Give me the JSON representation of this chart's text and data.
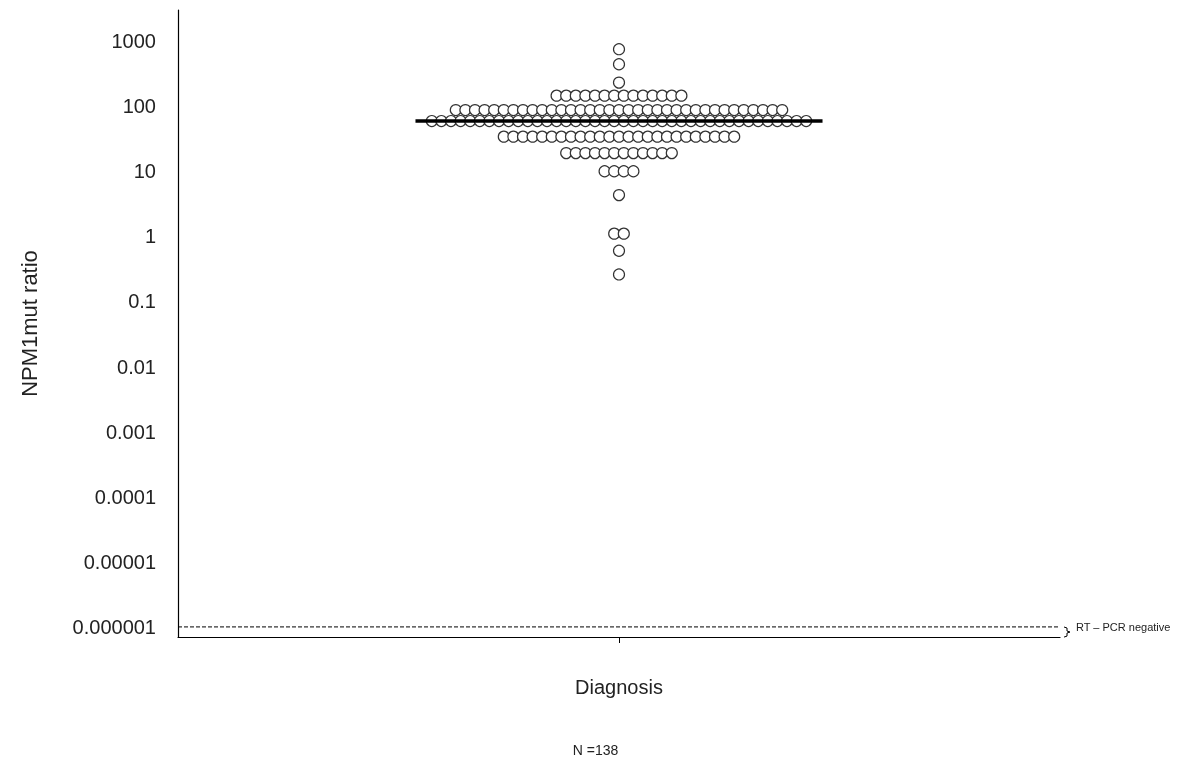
{
  "chart_data": {
    "type": "scatter",
    "ylabel": "NPM1mut ratio",
    "categories": [
      "Diagnosis"
    ],
    "series": [
      {
        "color": "#ffffff",
        "x": [
          "Diagnosis",
          "Diagnosis",
          "Diagnosis",
          "Diagnosis",
          "Diagnosis",
          "Diagnosis",
          "Diagnosis",
          "Diagnosis",
          "Diagnosis",
          "Diagnosis",
          "Diagnosis",
          "Diagnosis",
          "Diagnosis",
          "Diagnosis",
          "Diagnosis",
          "Diagnosis",
          "Diagnosis",
          "Diagnosis",
          "Diagnosis",
          "Diagnosis",
          "Diagnosis",
          "Diagnosis",
          "Diagnosis",
          "Diagnosis",
          "Diagnosis",
          "Diagnosis",
          "Diagnosis",
          "Diagnosis",
          "Diagnosis",
          "Diagnosis",
          "Diagnosis",
          "Diagnosis",
          "Diagnosis",
          "Diagnosis",
          "Diagnosis",
          "Diagnosis",
          "Diagnosis",
          "Diagnosis",
          "Diagnosis",
          "Diagnosis",
          "Diagnosis",
          "Diagnosis",
          "Diagnosis",
          "Diagnosis",
          "Diagnosis",
          "Diagnosis",
          "Diagnosis",
          "Diagnosis",
          "Diagnosis",
          "Diagnosis",
          "Diagnosis",
          "Diagnosis",
          "Diagnosis",
          "Diagnosis",
          "Diagnosis",
          "Diagnosis",
          "Diagnosis",
          "Diagnosis",
          "Diagnosis",
          "Diagnosis",
          "Diagnosis",
          "Diagnosis",
          "Diagnosis",
          "Diagnosis",
          "Diagnosis",
          "Diagnosis",
          "Diagnosis",
          "Diagnosis",
          "Diagnosis",
          "Diagnosis",
          "Diagnosis",
          "Diagnosis",
          "Diagnosis",
          "Diagnosis",
          "Diagnosis",
          "Diagnosis",
          "Diagnosis",
          "Diagnosis",
          "Diagnosis",
          "Diagnosis",
          "Diagnosis",
          "Diagnosis",
          "Diagnosis",
          "Diagnosis",
          "Diagnosis",
          "Diagnosis",
          "Diagnosis",
          "Diagnosis",
          "Diagnosis",
          "Diagnosis",
          "Diagnosis",
          "Diagnosis",
          "Diagnosis",
          "Diagnosis",
          "Diagnosis",
          "Diagnosis",
          "Diagnosis",
          "Diagnosis",
          "Diagnosis",
          "Diagnosis",
          "Diagnosis",
          "Diagnosis",
          "Diagnosis",
          "Diagnosis",
          "Diagnosis",
          "Diagnosis",
          "Diagnosis",
          "Diagnosis",
          "Diagnosis",
          "Diagnosis",
          "Diagnosis",
          "Diagnosis",
          "Diagnosis",
          "Diagnosis",
          "Diagnosis",
          "Diagnosis",
          "Diagnosis",
          "Diagnosis",
          "Diagnosis",
          "Diagnosis",
          "Diagnosis",
          "Diagnosis",
          "Diagnosis",
          "Diagnosis",
          "Diagnosis",
          "Diagnosis",
          "Diagnosis",
          "Diagnosis",
          "Diagnosis",
          "Diagnosis",
          "Diagnosis",
          "Diagnosis",
          "Diagnosis",
          "Diagnosis",
          "Diagnosis",
          "Diagnosis",
          "Diagnosis",
          "Diagnosis"
        ],
        "values": [
          750,
          440,
          230,
          145,
          145,
          145,
          145,
          145,
          145,
          145,
          145,
          145,
          145,
          145,
          145,
          145,
          145,
          87,
          87,
          87,
          87,
          87,
          87,
          87,
          87,
          87,
          87,
          87,
          87,
          87,
          87,
          87,
          87,
          87,
          87,
          87,
          87,
          87,
          87,
          87,
          87,
          87,
          87,
          87,
          87,
          87,
          87,
          87,
          87,
          87,
          87,
          87,
          59,
          59,
          59,
          59,
          59,
          59,
          59,
          59,
          59,
          59,
          59,
          59,
          59,
          59,
          59,
          59,
          59,
          59,
          59,
          59,
          59,
          59,
          59,
          59,
          59,
          59,
          59,
          59,
          59,
          59,
          59,
          59,
          59,
          59,
          59,
          59,
          59,
          59,
          59,
          59,
          34,
          34,
          34,
          34,
          34,
          34,
          34,
          34,
          34,
          34,
          34,
          34,
          34,
          34,
          34,
          34,
          34,
          34,
          34,
          34,
          34,
          34,
          34,
          34,
          34,
          19,
          19,
          19,
          19,
          19,
          19,
          19,
          19,
          19,
          19,
          19,
          19,
          10,
          10,
          10,
          10,
          4.3,
          1.1,
          1.1,
          0.6,
          0.26
        ]
      }
    ],
    "ylim": [
      7e-07,
      3000
    ],
    "yticks": [
      {
        "value": 1e-06,
        "label": "0.000001"
      },
      {
        "value": 1e-05,
        "label": "0.00001"
      },
      0.0001,
      0.001,
      0.01,
      0.1,
      1,
      10,
      100,
      1000
    ],
    "log": "y",
    "marker": "circle",
    "grid": false,
    "ref_lines": [
      {
        "axis": "y",
        "value": 59,
        "label": null,
        "color": "#000000",
        "line_style": "solid"
      },
      {
        "axis": "y",
        "value": 1e-06,
        "label": "RT – PCR negative",
        "color": "#000000",
        "line_style": "dashed"
      }
    ],
    "annotations": [
      "N =138"
    ]
  }
}
